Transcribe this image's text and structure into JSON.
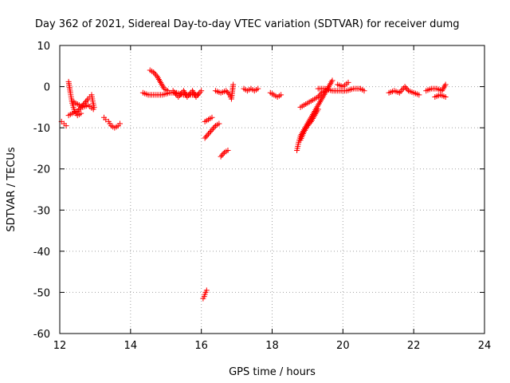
{
  "chart_data": {
    "type": "scatter",
    "title": "Day 362 of 2021, Sidereal Day-to-day VTEC variation (SDTVAR) for receiver dumg",
    "xlabel": "GPS time / hours",
    "ylabel": "SDTVAR / TECUs",
    "xlim": [
      12,
      24
    ],
    "ylim": [
      -60,
      10
    ],
    "xticks": [
      12,
      14,
      16,
      18,
      20,
      22,
      24
    ],
    "yticks": [
      10,
      0,
      -10,
      -20,
      -30,
      -40,
      -50,
      -60
    ],
    "xtick_labels": [
      "12",
      "14",
      "16",
      "18",
      "20",
      "22",
      "24"
    ],
    "ytick_labels": [
      "10",
      "0",
      "-10",
      "-20",
      "-30",
      "-40",
      "-50",
      "-60"
    ],
    "grid": true,
    "marker": "+",
    "color": "#ff0000",
    "segments": [
      [
        [
          12.05,
          -8.5
        ],
        [
          12.12,
          -9.0
        ],
        [
          12.18,
          -9.5
        ]
      ],
      [
        [
          12.25,
          1.2
        ],
        [
          12.3,
          -1.5
        ],
        [
          12.35,
          -4.0
        ],
        [
          12.42,
          -6.0
        ],
        [
          12.5,
          -7.0
        ],
        [
          12.6,
          -6.5
        ]
      ],
      [
        [
          12.25,
          -7.0
        ],
        [
          12.35,
          -6.5
        ],
        [
          12.5,
          -6.0
        ],
        [
          12.6,
          -5.0
        ],
        [
          12.7,
          -4.0
        ],
        [
          12.8,
          -3.0
        ],
        [
          12.85,
          -2.5
        ]
      ],
      [
        [
          12.35,
          -3.5
        ],
        [
          12.45,
          -4.0
        ],
        [
          12.55,
          -4.5
        ],
        [
          12.65,
          -5.0
        ],
        [
          12.8,
          -4.5
        ],
        [
          12.95,
          -5.5
        ]
      ],
      [
        [
          12.9,
          -2.0
        ],
        [
          12.93,
          -3.5
        ],
        [
          12.97,
          -5.0
        ]
      ],
      [
        [
          13.25,
          -7.5
        ],
        [
          13.3,
          -8.0
        ],
        [
          13.38,
          -8.5
        ],
        [
          13.45,
          -9.5
        ],
        [
          13.55,
          -10.0
        ],
        [
          13.65,
          -9.5
        ],
        [
          13.7,
          -9.0
        ]
      ],
      [
        [
          14.35,
          -1.5
        ],
        [
          14.5,
          -2.0
        ],
        [
          14.7,
          -2.0
        ],
        [
          14.9,
          -2.0
        ],
        [
          15.1,
          -1.5
        ],
        [
          15.3,
          -1.5
        ],
        [
          15.5,
          -2.0
        ],
        [
          15.7,
          -2.0
        ],
        [
          15.9,
          -2.0
        ]
      ],
      [
        [
          14.55,
          4.0
        ],
        [
          14.65,
          3.5
        ],
        [
          14.75,
          2.5
        ],
        [
          14.85,
          1.0
        ],
        [
          14.95,
          -0.5
        ],
        [
          15.05,
          -1.0
        ]
      ],
      [
        [
          15.2,
          -1.0
        ],
        [
          15.35,
          -2.5
        ],
        [
          15.5,
          -1.0
        ],
        [
          15.6,
          -2.5
        ],
        [
          15.75,
          -1.0
        ],
        [
          15.85,
          -2.5
        ],
        [
          16.0,
          -1.0
        ]
      ],
      [
        [
          16.05,
          -51.5
        ],
        [
          16.08,
          -51.0
        ],
        [
          16.12,
          -50.0
        ],
        [
          16.15,
          -49.5
        ]
      ],
      [
        [
          16.1,
          -8.5
        ],
        [
          16.2,
          -8.0
        ],
        [
          16.3,
          -7.5
        ]
      ],
      [
        [
          16.1,
          -12.5
        ],
        [
          16.2,
          -11.5
        ],
        [
          16.3,
          -10.5
        ],
        [
          16.4,
          -9.5
        ],
        [
          16.5,
          -9.0
        ]
      ],
      [
        [
          16.55,
          -17.0
        ],
        [
          16.65,
          -16.0
        ],
        [
          16.75,
          -15.5
        ]
      ],
      [
        [
          16.4,
          -1.0
        ],
        [
          16.55,
          -1.5
        ],
        [
          16.7,
          -1.0
        ],
        [
          16.8,
          -2.0
        ],
        [
          16.85,
          -3.0
        ],
        [
          16.9,
          0.5
        ]
      ],
      [
        [
          17.2,
          -0.5
        ],
        [
          17.3,
          -1.0
        ],
        [
          17.4,
          -0.5
        ],
        [
          17.5,
          -1.0
        ],
        [
          17.6,
          -0.5
        ]
      ],
      [
        [
          17.95,
          -1.5
        ],
        [
          18.05,
          -2.0
        ],
        [
          18.15,
          -2.5
        ],
        [
          18.25,
          -2.0
        ]
      ],
      [
        [
          18.7,
          -15.5
        ],
        [
          18.75,
          -13.5
        ],
        [
          18.8,
          -12.0
        ],
        [
          18.9,
          -10.5
        ],
        [
          19.0,
          -9.0
        ],
        [
          19.1,
          -7.5
        ],
        [
          19.2,
          -6.0
        ],
        [
          19.3,
          -4.5
        ],
        [
          19.4,
          -3.0
        ],
        [
          19.5,
          -1.5
        ],
        [
          19.6,
          0.0
        ],
        [
          19.7,
          1.5
        ]
      ],
      [
        [
          18.8,
          -13.0
        ],
        [
          18.9,
          -11.0
        ],
        [
          19.0,
          -9.5
        ],
        [
          19.1,
          -8.5
        ],
        [
          19.2,
          -7.0
        ],
        [
          19.3,
          -5.5
        ]
      ],
      [
        [
          18.8,
          -5.0
        ],
        [
          18.9,
          -4.5
        ],
        [
          19.0,
          -4.0
        ],
        [
          19.1,
          -3.5
        ],
        [
          19.2,
          -3.0
        ],
        [
          19.3,
          -2.5
        ],
        [
          19.4,
          -1.5
        ],
        [
          19.5,
          -1.0
        ]
      ],
      [
        [
          19.3,
          -0.5
        ],
        [
          19.5,
          -0.5
        ],
        [
          19.7,
          -1.0
        ],
        [
          19.9,
          -1.0
        ],
        [
          20.1,
          -1.0
        ],
        [
          20.3,
          -0.5
        ],
        [
          20.5,
          -0.5
        ],
        [
          20.6,
          -1.0
        ]
      ],
      [
        [
          19.85,
          0.5
        ],
        [
          20.0,
          0.0
        ],
        [
          20.15,
          1.0
        ]
      ],
      [
        [
          21.3,
          -1.5
        ],
        [
          21.45,
          -1.0
        ],
        [
          21.6,
          -1.5
        ],
        [
          21.75,
          0.0
        ],
        [
          21.85,
          -1.0
        ],
        [
          22.0,
          -1.5
        ],
        [
          22.15,
          -2.0
        ]
      ],
      [
        [
          22.35,
          -1.0
        ],
        [
          22.5,
          -0.5
        ],
        [
          22.65,
          -0.5
        ],
        [
          22.8,
          -1.0
        ],
        [
          22.9,
          0.5
        ]
      ],
      [
        [
          22.6,
          -2.5
        ],
        [
          22.75,
          -2.0
        ],
        [
          22.9,
          -2.5
        ]
      ]
    ]
  }
}
